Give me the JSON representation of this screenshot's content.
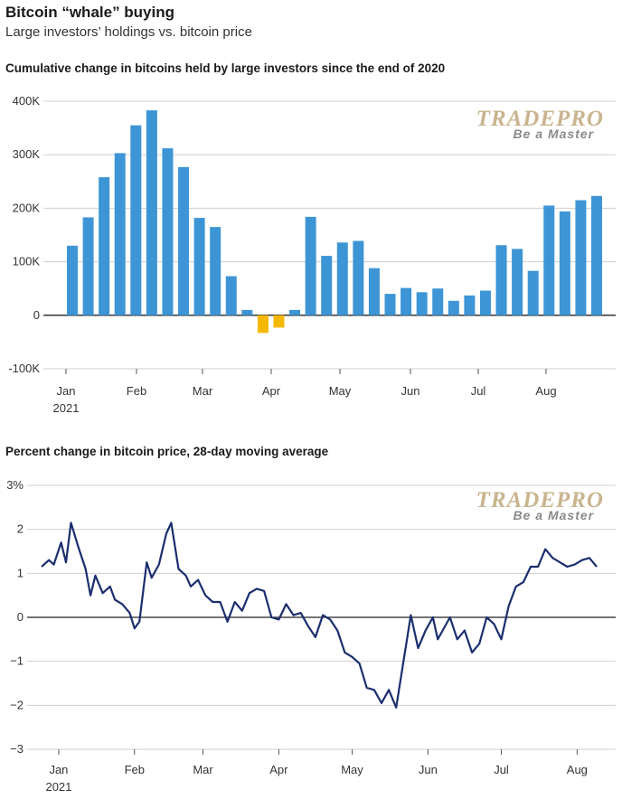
{
  "header": {
    "title": "Bitcoin “whale” buying",
    "subtitle": "Large investors’ holdings vs. bitcoin price"
  },
  "watermark": {
    "brand": "TRADEPRO",
    "tagline": "Be a Master"
  },
  "colors": {
    "positive_bar": "#3d95d6",
    "negative_bar": "#f5b800",
    "line": "#1a2e6e",
    "axis": "#222222"
  },
  "chart_data": [
    {
      "type": "bar",
      "title": "Cumulative change in bitcoins held by large investors since the end of 2020",
      "y_ticks": [
        400000,
        300000,
        200000,
        100000,
        0,
        -100000
      ],
      "y_tick_labels": [
        "400K",
        "300K",
        "200K",
        "100K",
        "0",
        "-100K"
      ],
      "ylim": [
        -100000,
        400000
      ],
      "x_ticks": [
        "Jan",
        "Feb",
        "Mar",
        "Apr",
        "May",
        "Jun",
        "Jul",
        "Aug"
      ],
      "x_tick_sublabel": "2021",
      "values": [
        130000,
        183000,
        258000,
        303000,
        355000,
        383000,
        312000,
        277000,
        182000,
        165000,
        73000,
        10000,
        -33000,
        -23000,
        10000,
        184000,
        111000,
        136000,
        139000,
        88000,
        40000,
        51000,
        43000,
        50000,
        27000,
        37000,
        46000,
        131000,
        124000,
        83000,
        205000,
        194000,
        215000,
        223000
      ]
    },
    {
      "type": "line",
      "title": "Percent change in bitcoin price, 28-day moving average",
      "y_ticks": [
        3,
        2,
        1,
        0,
        -1,
        -2,
        -3
      ],
      "y_tick_labels": [
        "3%",
        "2",
        "1",
        "0",
        "−1",
        "−2",
        "−3"
      ],
      "ylim": [
        -3,
        3
      ],
      "x_ticks": [
        "Jan",
        "Feb",
        "Mar",
        "Apr",
        "May",
        "Jun",
        "Jul",
        "Aug"
      ],
      "x_tick_sublabel": "2021",
      "x_range": [
        0,
        227
      ],
      "x_tick_days": [
        7,
        38,
        66,
        97,
        127,
        158,
        188,
        219
      ],
      "x": [
        0,
        3,
        5,
        8,
        10,
        12,
        15,
        18,
        20,
        22,
        25,
        28,
        30,
        33,
        36,
        38,
        40,
        43,
        45,
        48,
        51,
        53,
        56,
        59,
        61,
        64,
        67,
        70,
        73,
        76,
        79,
        82,
        85,
        88,
        91,
        94,
        97,
        100,
        103,
        106,
        109,
        112,
        115,
        118,
        121,
        124,
        127,
        130,
        133,
        136,
        139,
        142,
        145,
        148,
        151,
        154,
        157,
        160,
        162,
        164,
        167,
        170,
        173,
        176,
        179,
        182,
        185,
        188,
        191,
        194,
        197,
        200,
        203,
        206,
        209,
        212,
        215,
        218,
        221,
        224,
        227
      ],
      "y": [
        1.15,
        1.3,
        1.2,
        1.7,
        1.25,
        2.15,
        1.6,
        1.1,
        0.5,
        0.95,
        0.55,
        0.7,
        0.4,
        0.3,
        0.1,
        -0.25,
        -0.1,
        1.25,
        0.9,
        1.2,
        1.9,
        2.15,
        1.1,
        0.95,
        0.7,
        0.85,
        0.5,
        0.35,
        0.35,
        -0.1,
        0.35,
        0.15,
        0.55,
        0.65,
        0.6,
        0.0,
        -0.05,
        0.3,
        0.05,
        0.1,
        -0.2,
        -0.45,
        0.05,
        -0.05,
        -0.3,
        -0.8,
        -0.9,
        -1.05,
        -1.6,
        -1.65,
        -1.95,
        -1.65,
        -2.05,
        -1.0,
        0.05,
        -0.7,
        -0.3,
        0.0,
        -0.5,
        -0.3,
        0.0,
        -0.5,
        -0.3,
        -0.8,
        -0.6,
        0.0,
        -0.15,
        -0.5,
        0.25,
        0.7,
        0.8,
        1.15,
        1.15,
        1.55,
        1.35,
        1.25,
        1.15,
        1.2,
        1.3,
        1.35,
        1.15
      ]
    }
  ]
}
